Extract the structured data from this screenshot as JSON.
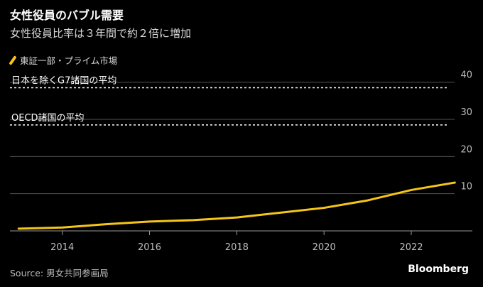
{
  "header": {
    "title": "女性役員のバブル需要",
    "subtitle": "女性役員比率は３年間で約２倍に増加"
  },
  "footer": {
    "source": "Source: 男女共同参画局",
    "brand": "Bloomberg"
  },
  "colors": {
    "background": "#000000",
    "series": "#f5c518",
    "grid": "#555555",
    "reference": "#ffffff"
  },
  "chart_data": {
    "type": "line",
    "title": "女性役員のバブル需要",
    "subtitle": "女性役員比率は３年間で約２倍に増加",
    "xlabel": "",
    "ylabel": "",
    "x": [
      2013,
      2014,
      2015,
      2016,
      2017,
      2018,
      2019,
      2020,
      2021,
      2022,
      2023
    ],
    "series": [
      {
        "name": "東証一部・プライム市場",
        "color": "#f5c518",
        "values": [
          0.6,
          0.9,
          1.8,
          2.5,
          2.9,
          3.6,
          4.9,
          6.2,
          8.2,
          11.0,
          13.0
        ]
      }
    ],
    "reference_lines": [
      {
        "label": "日本を除くG7諸国の平均",
        "value": 38.5
      },
      {
        "label": "OECD諸国の平均",
        "value": 28.5
      }
    ],
    "xticks": [
      2014,
      2016,
      2018,
      2020,
      2022
    ],
    "yticks": [
      10,
      20,
      30,
      40
    ],
    "xlim": [
      2012.8,
      2023.4
    ],
    "ylim": [
      0,
      43
    ],
    "grid": true,
    "legend_position": "top-left"
  }
}
